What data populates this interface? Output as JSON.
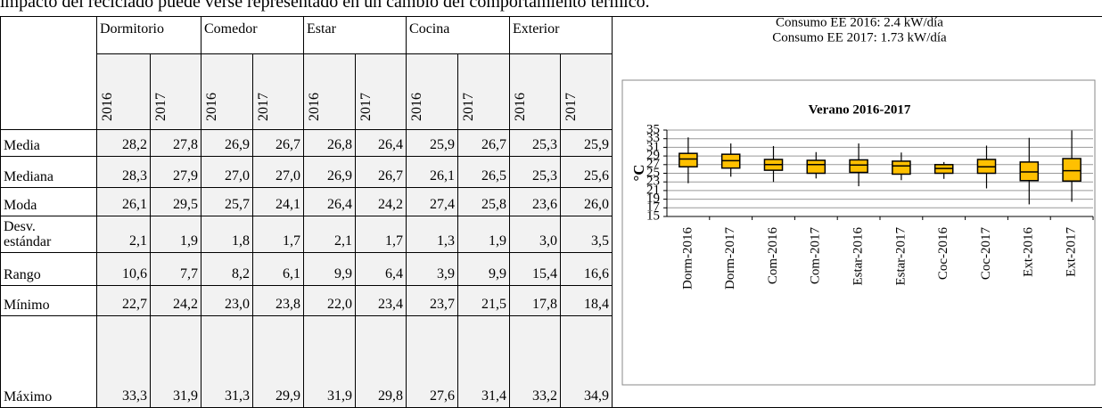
{
  "intro": "impacto del reciclado puede verse representado en un cambio del comportamiento térmico.",
  "table": {
    "groups": [
      "Dormitorio",
      "Comedor",
      "Estar",
      "Cocina",
      "Exterior"
    ],
    "years": [
      "2016",
      "2017",
      "2016",
      "2017",
      "2016",
      "2017",
      "2016",
      "2017",
      "2016",
      "2017"
    ],
    "rows": [
      {
        "label": "Media",
        "values": [
          "28,2",
          "27,8",
          "26,9",
          "26,7",
          "26,8",
          "26,4",
          "25,9",
          "26,7",
          "25,3",
          "25,9"
        ]
      },
      {
        "label": "Mediana",
        "values": [
          "28,3",
          "27,9",
          "27,0",
          "27,0",
          "26,9",
          "26,7",
          "26,1",
          "26,5",
          "25,3",
          "25,6"
        ]
      },
      {
        "label": "Moda",
        "values": [
          "26,1",
          "29,5",
          "25,7",
          "24,1",
          "26,4",
          "24,2",
          "27,4",
          "25,8",
          "23,6",
          "26,0"
        ]
      },
      {
        "label": "Desv.\nestándar",
        "values": [
          "2,1",
          "1,9",
          "1,8",
          "1,7",
          "2,1",
          "1,7",
          "1,3",
          "1,9",
          "3,0",
          "3,5"
        ]
      },
      {
        "label": "Rango",
        "values": [
          "10,6",
          "7,7",
          "8,2",
          "6,1",
          "9,9",
          "6,4",
          "3,9",
          "9,9",
          "15,4",
          "16,6"
        ]
      },
      {
        "label": "Mínimo",
        "values": [
          "22,7",
          "24,2",
          "23,0",
          "23,8",
          "22,0",
          "23,4",
          "23,7",
          "21,5",
          "17,8",
          "18,4"
        ]
      },
      {
        "label": "Máximo",
        "values": [
          "33,3",
          "31,9",
          "31,3",
          "29,9",
          "31,9",
          "29,8",
          "27,6",
          "31,4",
          "33,2",
          "34,9"
        ]
      }
    ]
  },
  "consumo": [
    "Consumo EE 2016: 2.4 kW/día",
    "Consumo EE 2017: 1.73 kW/día"
  ],
  "chart_data": {
    "type": "box",
    "title": "Verano 2016-2017",
    "ylabel": "°C",
    "categories": [
      "Dorm-2016",
      "Dorm-2017",
      "Com-2016",
      "Com-2017",
      "Estar-2016",
      "Estar-2017",
      "Coc-2016",
      "Coc-2017",
      "Ext-2016",
      "Ext-2017"
    ],
    "stats": [
      {
        "min": 22.7,
        "q1": 26.5,
        "median": 28.3,
        "q3": 29.6,
        "max": 33.3
      },
      {
        "min": 24.2,
        "q1": 26.2,
        "median": 27.9,
        "q3": 29.4,
        "max": 31.9
      },
      {
        "min": 23.0,
        "q1": 25.7,
        "median": 27.0,
        "q3": 28.2,
        "max": 31.3
      },
      {
        "min": 23.8,
        "q1": 25.0,
        "median": 27.0,
        "q3": 28.0,
        "max": 29.9
      },
      {
        "min": 22.0,
        "q1": 25.2,
        "median": 26.9,
        "q3": 28.1,
        "max": 31.9
      },
      {
        "min": 23.4,
        "q1": 24.8,
        "median": 26.7,
        "q3": 27.8,
        "max": 29.8
      },
      {
        "min": 23.7,
        "q1": 25.0,
        "median": 26.1,
        "q3": 27.0,
        "max": 27.6
      },
      {
        "min": 21.5,
        "q1": 25.0,
        "median": 26.5,
        "q3": 28.2,
        "max": 31.4
      },
      {
        "min": 17.8,
        "q1": 23.3,
        "median": 25.3,
        "q3": 27.6,
        "max": 33.2
      },
      {
        "min": 18.4,
        "q1": 23.2,
        "median": 25.6,
        "q3": 28.4,
        "max": 34.9
      }
    ],
    "color": "#ffc000",
    "ylim": [
      15,
      35
    ],
    "yticks": [
      15,
      17,
      19,
      21,
      23,
      25,
      27,
      29,
      31,
      33,
      35
    ],
    "grid": true
  }
}
